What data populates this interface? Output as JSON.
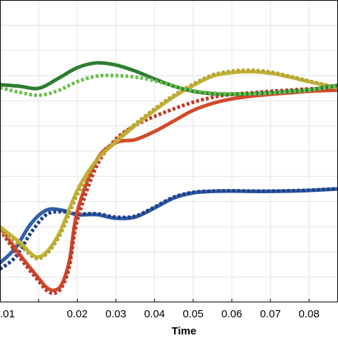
{
  "chart_data": {
    "type": "line",
    "title": "",
    "xlabel": "Time",
    "ylabel": "",
    "xlim": [
      0.0,
      0.0875
    ],
    "grid": true,
    "x_ticks": [
      0.01,
      0.02,
      0.03,
      0.04,
      0.05,
      0.06,
      0.07,
      0.08
    ],
    "x_tick_labels": [
      ".01",
      "0.02",
      "0.03",
      "0.04",
      "0.05",
      "0.06",
      "0.07",
      "0.08"
    ],
    "y_grid_count": 12,
    "series": [
      {
        "color": "#2e7d32",
        "style": "solid",
        "x": [
          0.0,
          0.005,
          0.01,
          0.015,
          0.02,
          0.025,
          0.03,
          0.035,
          0.04,
          0.045,
          0.05,
          0.055,
          0.06,
          0.065,
          0.07,
          0.075,
          0.08,
          0.0875
        ],
        "y": [
          0.72,
          0.715,
          0.708,
          0.74,
          0.776,
          0.792,
          0.785,
          0.765,
          0.739,
          0.715,
          0.698,
          0.69,
          0.688,
          0.69,
          0.693,
          0.698,
          0.703,
          0.718
        ]
      },
      {
        "color": "#6bbf4e",
        "style": "dotted",
        "x": [
          0.0,
          0.005,
          0.01,
          0.015,
          0.02,
          0.025,
          0.03,
          0.035,
          0.04,
          0.045,
          0.05,
          0.055,
          0.06,
          0.065,
          0.07,
          0.075,
          0.08,
          0.0875
        ],
        "y": [
          0.71,
          0.695,
          0.685,
          0.7,
          0.73,
          0.748,
          0.75,
          0.745,
          0.733,
          0.715,
          0.7,
          0.692,
          0.69,
          0.69,
          0.692,
          0.697,
          0.702,
          0.716
        ]
      },
      {
        "color": "#c2b33a",
        "style": "solid",
        "x": [
          0.0,
          0.005,
          0.01,
          0.015,
          0.02,
          0.025,
          0.03,
          0.035,
          0.04,
          0.045,
          0.05,
          0.055,
          0.06,
          0.065,
          0.07,
          0.075,
          0.08,
          0.0875
        ],
        "y": [
          0.25,
          0.2,
          0.15,
          0.22,
          0.37,
          0.47,
          0.53,
          0.585,
          0.635,
          0.68,
          0.717,
          0.748,
          0.76,
          0.763,
          0.758,
          0.745,
          0.73,
          0.708
        ]
      },
      {
        "color": "#b8a632",
        "style": "dotted",
        "x": [
          0.0,
          0.005,
          0.01,
          0.015,
          0.02,
          0.025,
          0.03,
          0.035,
          0.04,
          0.045,
          0.05,
          0.055,
          0.06,
          0.065,
          0.07,
          0.075,
          0.08,
          0.0875
        ],
        "y": [
          0.24,
          0.19,
          0.145,
          0.21,
          0.355,
          0.47,
          0.535,
          0.59,
          0.64,
          0.685,
          0.722,
          0.752,
          0.765,
          0.768,
          0.762,
          0.748,
          0.732,
          0.71
        ]
      },
      {
        "color": "#d24a2a",
        "style": "solid",
        "x": [
          0.0,
          0.005,
          0.01,
          0.012,
          0.014,
          0.016,
          0.018,
          0.02,
          0.025,
          0.03,
          0.035,
          0.04,
          0.045,
          0.05,
          0.055,
          0.06,
          0.065,
          0.07,
          0.075,
          0.08,
          0.0875
        ],
        "y": [
          0.25,
          0.16,
          0.08,
          0.05,
          0.04,
          0.06,
          0.14,
          0.3,
          0.47,
          0.528,
          0.538,
          0.565,
          0.6,
          0.635,
          0.658,
          0.673,
          0.682,
          0.688,
          0.693,
          0.698,
          0.702
        ]
      },
      {
        "color": "#c0392b",
        "style": "dotted",
        "x": [
          0.0,
          0.005,
          0.01,
          0.012,
          0.014,
          0.016,
          0.018,
          0.02,
          0.025,
          0.03,
          0.035,
          0.04,
          0.045,
          0.05,
          0.055,
          0.06,
          0.065,
          0.07,
          0.075,
          0.08,
          0.0875
        ],
        "y": [
          0.24,
          0.15,
          0.07,
          0.04,
          0.03,
          0.05,
          0.12,
          0.27,
          0.45,
          0.54,
          0.585,
          0.615,
          0.64,
          0.662,
          0.678,
          0.688,
          0.693,
          0.698,
          0.702,
          0.706,
          0.708
        ]
      },
      {
        "color": "#2f5fa8",
        "style": "solid",
        "x": [
          0.0,
          0.004,
          0.008,
          0.012,
          0.016,
          0.02,
          0.025,
          0.03,
          0.035,
          0.04,
          0.045,
          0.05,
          0.055,
          0.06,
          0.065,
          0.07,
          0.075,
          0.08,
          0.0875
        ],
        "y": [
          0.13,
          0.18,
          0.26,
          0.305,
          0.305,
          0.29,
          0.29,
          0.278,
          0.282,
          0.312,
          0.345,
          0.362,
          0.367,
          0.368,
          0.367,
          0.367,
          0.368,
          0.37,
          0.375
        ]
      },
      {
        "color": "#1f3f8a",
        "style": "dotted",
        "x": [
          0.0,
          0.004,
          0.008,
          0.012,
          0.016,
          0.02,
          0.025,
          0.03,
          0.035,
          0.04,
          0.045,
          0.05,
          0.055,
          0.06,
          0.065,
          0.07,
          0.075,
          0.08,
          0.0875
        ],
        "y": [
          0.11,
          0.15,
          0.23,
          0.29,
          0.3,
          0.292,
          0.293,
          0.282,
          0.285,
          0.315,
          0.348,
          0.364,
          0.368,
          0.369,
          0.368,
          0.368,
          0.369,
          0.371,
          0.376
        ]
      }
    ]
  }
}
